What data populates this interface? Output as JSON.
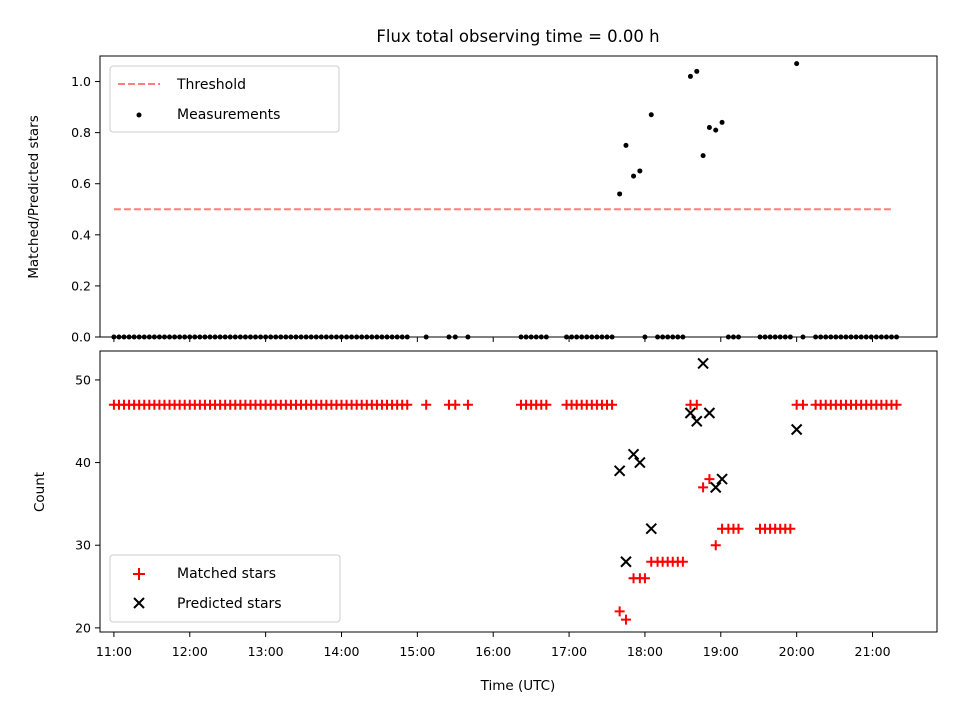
{
  "title": "Flux total observing time = 0.00 h",
  "xlabel": "Time (UTC)",
  "x_ticks": [
    "11:00",
    "12:00",
    "13:00",
    "14:00",
    "15:00",
    "16:00",
    "17:00",
    "18:00",
    "19:00",
    "20:00",
    "21:00"
  ],
  "colors": {
    "threshold": "#ff7f7f",
    "measurements": "#000000",
    "matched": "#ff0000",
    "predicted": "#000000"
  },
  "chart_data": [
    {
      "type": "scatter",
      "ylabel": "Matched/Predicted stars",
      "xlim": [
        "10:49",
        "21:51"
      ],
      "ylim": [
        0,
        1.1
      ],
      "y_ticks": [
        "0.0",
        "0.2",
        "0.4",
        "0.6",
        "0.8",
        "1.0"
      ],
      "legend": {
        "placement": "upper-left",
        "entries": [
          "Threshold",
          "Measurements"
        ]
      },
      "threshold": {
        "name": "Threshold",
        "value": 0.5,
        "x": [
          "11:00",
          "21:17"
        ]
      },
      "series": [
        {
          "name": "Measurements",
          "points": [
            [
              "11:00",
              0
            ],
            [
              "11:04",
              0
            ],
            [
              "11:08",
              0
            ],
            [
              "11:12",
              0
            ],
            [
              "11:16",
              0
            ],
            [
              "11:20",
              0
            ],
            [
              "11:24",
              0
            ],
            [
              "11:28",
              0
            ],
            [
              "11:32",
              0
            ],
            [
              "11:36",
              0
            ],
            [
              "11:40",
              0
            ],
            [
              "11:44",
              0
            ],
            [
              "11:48",
              0
            ],
            [
              "11:52",
              0
            ],
            [
              "11:56",
              0
            ],
            [
              "12:00",
              0
            ],
            [
              "12:04",
              0
            ],
            [
              "12:08",
              0
            ],
            [
              "12:12",
              0
            ],
            [
              "12:16",
              0
            ],
            [
              "12:20",
              0
            ],
            [
              "12:24",
              0
            ],
            [
              "12:28",
              0
            ],
            [
              "12:32",
              0
            ],
            [
              "12:36",
              0
            ],
            [
              "12:40",
              0
            ],
            [
              "12:44",
              0
            ],
            [
              "12:48",
              0
            ],
            [
              "12:52",
              0
            ],
            [
              "12:56",
              0
            ],
            [
              "13:00",
              0
            ],
            [
              "13:04",
              0
            ],
            [
              "13:08",
              0
            ],
            [
              "13:12",
              0
            ],
            [
              "13:16",
              0
            ],
            [
              "13:20",
              0
            ],
            [
              "13:24",
              0
            ],
            [
              "13:28",
              0
            ],
            [
              "13:32",
              0
            ],
            [
              "13:36",
              0
            ],
            [
              "13:40",
              0
            ],
            [
              "13:44",
              0
            ],
            [
              "13:48",
              0
            ],
            [
              "13:52",
              0
            ],
            [
              "13:56",
              0
            ],
            [
              "14:00",
              0
            ],
            [
              "14:04",
              0
            ],
            [
              "14:08",
              0
            ],
            [
              "14:12",
              0
            ],
            [
              "14:16",
              0
            ],
            [
              "14:20",
              0
            ],
            [
              "14:24",
              0
            ],
            [
              "14:28",
              0
            ],
            [
              "14:32",
              0
            ],
            [
              "14:36",
              0
            ],
            [
              "14:40",
              0
            ],
            [
              "14:44",
              0
            ],
            [
              "14:48",
              0
            ],
            [
              "14:52",
              0
            ],
            [
              "15:07",
              0
            ],
            [
              "15:25",
              0
            ],
            [
              "15:30",
              0
            ],
            [
              "15:40",
              0
            ],
            [
              "16:22",
              0
            ],
            [
              "16:26",
              0
            ],
            [
              "16:30",
              0
            ],
            [
              "16:34",
              0
            ],
            [
              "16:38",
              0
            ],
            [
              "16:42",
              0
            ],
            [
              "16:58",
              0
            ],
            [
              "17:02",
              0
            ],
            [
              "17:06",
              0
            ],
            [
              "17:10",
              0
            ],
            [
              "17:14",
              0
            ],
            [
              "17:18",
              0
            ],
            [
              "17:22",
              0
            ],
            [
              "17:26",
              0
            ],
            [
              "17:30",
              0
            ],
            [
              "17:34",
              0
            ],
            [
              "17:40",
              0.56
            ],
            [
              "17:45",
              0.75
            ],
            [
              "17:51",
              0.63
            ],
            [
              "17:56",
              0.65
            ],
            [
              "18:00",
              0
            ],
            [
              "18:05",
              0.87
            ],
            [
              "18:10",
              0
            ],
            [
              "18:14",
              0
            ],
            [
              "18:18",
              0
            ],
            [
              "18:22",
              0
            ],
            [
              "18:26",
              0
            ],
            [
              "18:30",
              0
            ],
            [
              "18:36",
              1.02
            ],
            [
              "18:41",
              1.04
            ],
            [
              "18:46",
              0.71
            ],
            [
              "18:51",
              0.82
            ],
            [
              "18:56",
              0.81
            ],
            [
              "19:01",
              0.84
            ],
            [
              "19:06",
              0
            ],
            [
              "19:10",
              0
            ],
            [
              "19:14",
              0
            ],
            [
              "19:31",
              0
            ],
            [
              "19:35",
              0
            ],
            [
              "19:39",
              0
            ],
            [
              "19:43",
              0
            ],
            [
              "19:47",
              0
            ],
            [
              "19:51",
              0
            ],
            [
              "19:55",
              0
            ],
            [
              "20:00",
              1.07
            ],
            [
              "20:05",
              0
            ],
            [
              "20:15",
              0
            ],
            [
              "20:19",
              0
            ],
            [
              "20:23",
              0
            ],
            [
              "20:27",
              0
            ],
            [
              "20:31",
              0
            ],
            [
              "20:35",
              0
            ],
            [
              "20:39",
              0
            ],
            [
              "20:43",
              0
            ],
            [
              "20:47",
              0
            ],
            [
              "20:51",
              0
            ],
            [
              "20:55",
              0
            ],
            [
              "20:59",
              0
            ],
            [
              "21:03",
              0
            ],
            [
              "21:07",
              0
            ],
            [
              "21:11",
              0
            ],
            [
              "21:15",
              0
            ],
            [
              "21:19",
              0
            ]
          ]
        }
      ]
    },
    {
      "type": "scatter",
      "ylabel": "Count",
      "xlim": [
        "10:49",
        "21:51"
      ],
      "ylim": [
        19.5,
        53.5
      ],
      "y_ticks": [
        "20",
        "30",
        "40",
        "50"
      ],
      "legend": {
        "placement": "lower-left",
        "entries": [
          "Matched stars",
          "Predicted stars"
        ]
      },
      "series": [
        {
          "name": "Matched stars",
          "points": [
            [
              "11:00",
              47
            ],
            [
              "11:04",
              47
            ],
            [
              "11:08",
              47
            ],
            [
              "11:12",
              47
            ],
            [
              "11:16",
              47
            ],
            [
              "11:20",
              47
            ],
            [
              "11:24",
              47
            ],
            [
              "11:28",
              47
            ],
            [
              "11:32",
              47
            ],
            [
              "11:36",
              47
            ],
            [
              "11:40",
              47
            ],
            [
              "11:44",
              47
            ],
            [
              "11:48",
              47
            ],
            [
              "11:52",
              47
            ],
            [
              "11:56",
              47
            ],
            [
              "12:00",
              47
            ],
            [
              "12:04",
              47
            ],
            [
              "12:08",
              47
            ],
            [
              "12:12",
              47
            ],
            [
              "12:16",
              47
            ],
            [
              "12:20",
              47
            ],
            [
              "12:24",
              47
            ],
            [
              "12:28",
              47
            ],
            [
              "12:32",
              47
            ],
            [
              "12:36",
              47
            ],
            [
              "12:40",
              47
            ],
            [
              "12:44",
              47
            ],
            [
              "12:48",
              47
            ],
            [
              "12:52",
              47
            ],
            [
              "12:56",
              47
            ],
            [
              "13:00",
              47
            ],
            [
              "13:04",
              47
            ],
            [
              "13:08",
              47
            ],
            [
              "13:12",
              47
            ],
            [
              "13:16",
              47
            ],
            [
              "13:20",
              47
            ],
            [
              "13:24",
              47
            ],
            [
              "13:28",
              47
            ],
            [
              "13:32",
              47
            ],
            [
              "13:36",
              47
            ],
            [
              "13:40",
              47
            ],
            [
              "13:44",
              47
            ],
            [
              "13:48",
              47
            ],
            [
              "13:52",
              47
            ],
            [
              "13:56",
              47
            ],
            [
              "14:00",
              47
            ],
            [
              "14:04",
              47
            ],
            [
              "14:08",
              47
            ],
            [
              "14:12",
              47
            ],
            [
              "14:16",
              47
            ],
            [
              "14:20",
              47
            ],
            [
              "14:24",
              47
            ],
            [
              "14:28",
              47
            ],
            [
              "14:32",
              47
            ],
            [
              "14:36",
              47
            ],
            [
              "14:40",
              47
            ],
            [
              "14:44",
              47
            ],
            [
              "14:48",
              47
            ],
            [
              "14:52",
              47
            ],
            [
              "15:07",
              47
            ],
            [
              "15:25",
              47
            ],
            [
              "15:30",
              47
            ],
            [
              "15:40",
              47
            ],
            [
              "16:22",
              47
            ],
            [
              "16:26",
              47
            ],
            [
              "16:30",
              47
            ],
            [
              "16:34",
              47
            ],
            [
              "16:38",
              47
            ],
            [
              "16:42",
              47
            ],
            [
              "16:58",
              47
            ],
            [
              "17:02",
              47
            ],
            [
              "17:06",
              47
            ],
            [
              "17:10",
              47
            ],
            [
              "17:14",
              47
            ],
            [
              "17:18",
              47
            ],
            [
              "17:22",
              47
            ],
            [
              "17:26",
              47
            ],
            [
              "17:30",
              47
            ],
            [
              "17:34",
              47
            ],
            [
              "17:40",
              22
            ],
            [
              "17:45",
              21
            ],
            [
              "17:51",
              26
            ],
            [
              "17:56",
              26
            ],
            [
              "18:00",
              26
            ],
            [
              "18:05",
              28
            ],
            [
              "18:10",
              28
            ],
            [
              "18:14",
              28
            ],
            [
              "18:18",
              28
            ],
            [
              "18:22",
              28
            ],
            [
              "18:26",
              28
            ],
            [
              "18:30",
              28
            ],
            [
              "18:36",
              47
            ],
            [
              "18:41",
              47
            ],
            [
              "18:46",
              37
            ],
            [
              "18:51",
              38
            ],
            [
              "18:56",
              30
            ],
            [
              "19:01",
              32
            ],
            [
              "19:06",
              32
            ],
            [
              "19:10",
              32
            ],
            [
              "19:14",
              32
            ],
            [
              "19:31",
              32
            ],
            [
              "19:35",
              32
            ],
            [
              "19:39",
              32
            ],
            [
              "19:43",
              32
            ],
            [
              "19:47",
              32
            ],
            [
              "19:51",
              32
            ],
            [
              "19:55",
              32
            ],
            [
              "20:00",
              47
            ],
            [
              "20:05",
              47
            ],
            [
              "20:15",
              47
            ],
            [
              "20:19",
              47
            ],
            [
              "20:23",
              47
            ],
            [
              "20:27",
              47
            ],
            [
              "20:31",
              47
            ],
            [
              "20:35",
              47
            ],
            [
              "20:39",
              47
            ],
            [
              "20:43",
              47
            ],
            [
              "20:47",
              47
            ],
            [
              "20:51",
              47
            ],
            [
              "20:55",
              47
            ],
            [
              "20:59",
              47
            ],
            [
              "21:03",
              47
            ],
            [
              "21:07",
              47
            ],
            [
              "21:11",
              47
            ],
            [
              "21:15",
              47
            ],
            [
              "21:19",
              47
            ]
          ]
        },
        {
          "name": "Predicted stars",
          "points": [
            [
              "17:40",
              39
            ],
            [
              "17:45",
              28
            ],
            [
              "17:51",
              41
            ],
            [
              "17:56",
              40
            ],
            [
              "18:05",
              32
            ],
            [
              "18:36",
              46
            ],
            [
              "18:41",
              45
            ],
            [
              "18:46",
              52
            ],
            [
              "18:51",
              46
            ],
            [
              "18:56",
              37
            ],
            [
              "19:01",
              38
            ],
            [
              "20:00",
              44
            ]
          ]
        }
      ]
    }
  ]
}
